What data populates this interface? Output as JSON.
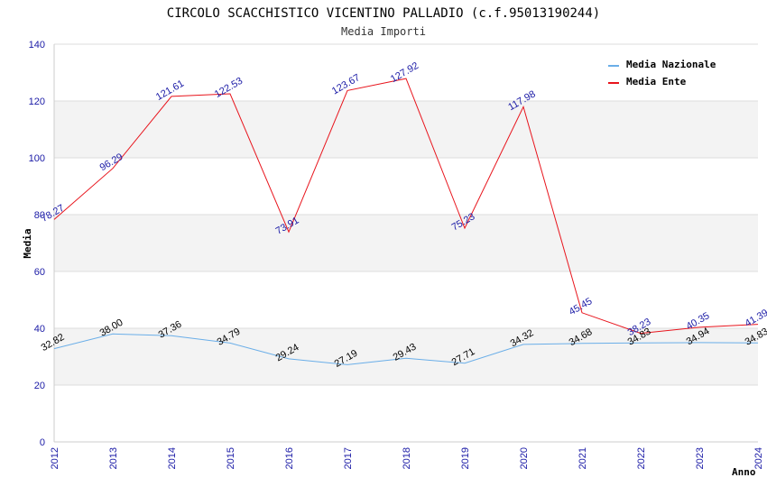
{
  "chart_data": {
    "type": "line",
    "title": "CIRCOLO SCACCHISTICO VICENTINO PALLADIO (c.f.95013190244)",
    "subtitle": "Media Importi",
    "xlabel": "Anno",
    "ylabel": "Media",
    "ylim": [
      0,
      140
    ],
    "yticks": [
      0,
      20,
      40,
      60,
      80,
      100,
      120,
      140
    ],
    "categories": [
      "2012",
      "2013",
      "2014",
      "2015",
      "2016",
      "2017",
      "2018",
      "2019",
      "2020",
      "2021",
      "2022",
      "2023",
      "2024"
    ],
    "legend_position": "top-right",
    "series": [
      {
        "name": "Media Nazionale",
        "color": "#6aaee8",
        "label_color": "#000000",
        "values": [
          32.82,
          38.0,
          37.36,
          34.79,
          29.24,
          27.19,
          29.43,
          27.71,
          34.32,
          34.68,
          34.83,
          34.94,
          34.83
        ],
        "labels": [
          "32.82",
          "38.00",
          "37.36",
          "34.79",
          "29.24",
          "27.19",
          "29.43",
          "27.71",
          "34.32",
          "34.68",
          "34.83",
          "34.94",
          "34.83"
        ]
      },
      {
        "name": "Media Ente",
        "color": "#e8141c",
        "label_color": "#1a1aa6",
        "values": [
          78.27,
          96.29,
          121.61,
          122.53,
          73.91,
          123.67,
          127.92,
          75.23,
          117.98,
          45.45,
          38.23,
          40.35,
          41.39
        ],
        "labels": [
          "78.27",
          "96.29",
          "121.61",
          "122.53",
          "73.91",
          "123.67",
          "127.92",
          "75.23",
          "117.98",
          "45.45",
          "38.23",
          "40.35",
          "41.39"
        ]
      }
    ]
  }
}
